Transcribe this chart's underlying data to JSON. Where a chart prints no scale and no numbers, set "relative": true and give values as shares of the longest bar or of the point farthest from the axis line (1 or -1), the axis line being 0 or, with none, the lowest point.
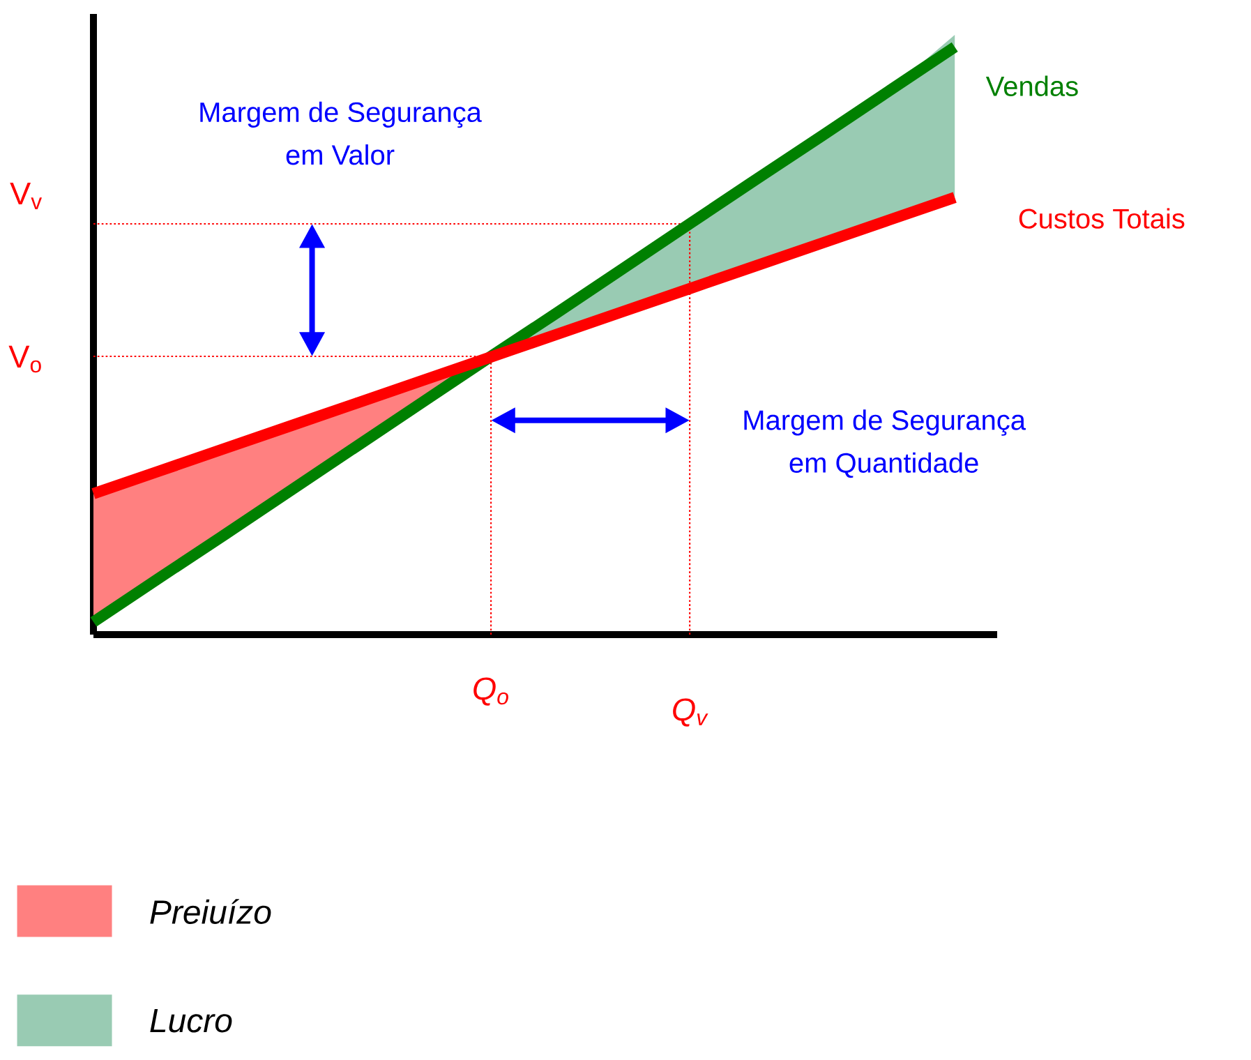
{
  "chart_data": {
    "type": "line",
    "relative": true,
    "legend": "bottom left",
    "categories": [
      null,
      null,
      null,
      null,
      null,
      null,
      "Q$_{o}$",
      null,
      null,
      "Q$_{v}$",
      null,
      null,
      null,
      null
    ],
    "series": [
      {
        "name": "Vendas",
        "color": "#008000",
        "values": [
          0.021,
          0.095,
          0.168,
          0.242,
          0.316,
          0.39,
          0.464,
          0.537,
          0.611,
          0.685,
          0.759,
          0.832,
          0.906,
          0.98
        ]
      },
      {
        "name": "Custos Totais",
        "color": "#ff0000",
        "values": [
          0.235,
          0.273,
          0.311,
          0.349,
          0.387,
          0.425,
          0.463,
          0.501,
          0.539,
          0.577,
          0.615,
          0.653,
          0.691,
          0.729
        ]
      },
      {
        "name": "Preiuízo",
        "type": "area",
        "color": "#ff8080",
        "values": [
          0.235,
          0.273,
          0.311,
          0.349,
          0.387,
          0.425,
          0.464,
          null,
          null,
          null,
          null,
          null,
          null,
          null
        ]
      },
      {
        "name": "Lucro",
        "type": "area",
        "color": "#99cbb3",
        "values": [
          null,
          null,
          null,
          null,
          null,
          null,
          0.464,
          0.537,
          0.611,
          0.685,
          0.759,
          0.832,
          0.906,
          1.0
        ]
      }
    ],
    "ref_lines": [
      {
        "axis": "y",
        "value": 0.685,
        "label": "V$_{v}$",
        "color": "#ff0000",
        "line_style": "dotted"
      },
      {
        "axis": "y",
        "value": 0.464,
        "label": "V$_{o}$",
        "color": "#ff0000",
        "line_style": "dotted"
      },
      {
        "axis": "x",
        "value": "Q$_{o}$",
        "color": "#ff0000",
        "line_style": "dotted"
      },
      {
        "axis": "x",
        "value": "Q$_{v}$",
        "color": "#ff0000",
        "line_style": "dotted"
      }
    ],
    "annotations": [
      "Margem de Segurança em Valor",
      "Margem de Segurança em Quantidade"
    ]
  }
}
